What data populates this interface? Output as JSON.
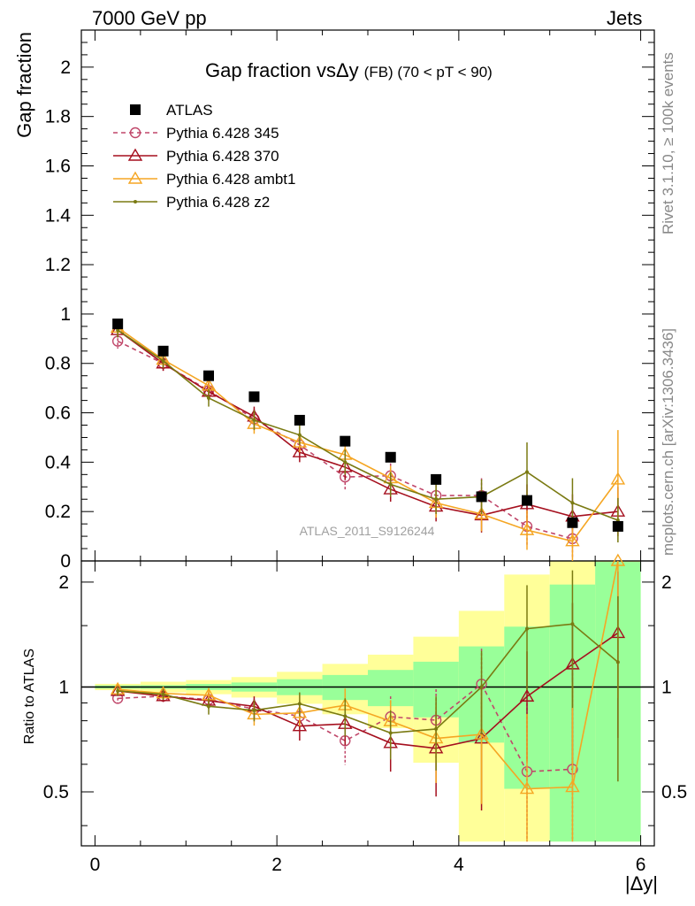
{
  "header": {
    "left": "7000 GeV pp",
    "right": "Jets"
  },
  "side_labels": {
    "rivet": "Rivet 3.1.10, ≥ 100k events",
    "mcplots": "mcplots.cern.ch [arXiv:1306.3436]"
  },
  "chart_data": {
    "type": "scatter",
    "title": "Gap fraction vsΔy (FB) (70 < pT < 90)",
    "title_parts": {
      "main": "Gap fraction vs",
      "delta": "Δy",
      "sub": "(FB) (70 < pT <  90)"
    },
    "watermark": "ATLAS_2011_S9126244",
    "xlabel": "|Δy|",
    "ylabel": "Gap fraction",
    "ratio_ylabel": "Ratio to ATLAS",
    "xlim": [
      -0.15,
      6.15
    ],
    "ylim": [
      0,
      2.15
    ],
    "ratio_ylim": [
      0.35,
      2.3
    ],
    "ratio_log": true,
    "xticks": [
      "0",
      "2",
      "4",
      "6"
    ],
    "yticks": [
      "0",
      "0.2",
      "0.4",
      "0.6",
      "0.8",
      "1",
      "1.2",
      "1.4",
      "1.6",
      "1.8",
      "2"
    ],
    "ratio_yticks": [
      "0.5",
      "1",
      "2"
    ],
    "legend_position": "top-left",
    "x": [
      0.25,
      0.75,
      1.25,
      1.75,
      2.25,
      2.75,
      3.25,
      3.75,
      4.25,
      4.75,
      5.25,
      5.75
    ],
    "bins": [
      0.0,
      0.5,
      1.0,
      1.5,
      2.0,
      2.5,
      3.0,
      3.5,
      4.0,
      4.5,
      5.0,
      5.5,
      6.0
    ],
    "data": {
      "name": "ATLAS",
      "color": "#000000",
      "values": [
        0.96,
        0.85,
        0.75,
        0.665,
        0.57,
        0.485,
        0.42,
        0.33,
        0.26,
        0.245,
        0.155,
        0.14
      ],
      "band_inner": [
        0.01,
        0.01,
        0.015,
        0.02,
        0.03,
        0.04,
        0.05,
        0.06,
        0.08,
        0.12,
        0.15,
        0.18
      ],
      "band_outer": [
        0.02,
        0.03,
        0.035,
        0.045,
        0.06,
        0.08,
        0.1,
        0.13,
        0.17,
        0.27,
        0.33,
        0.4
      ]
    },
    "series": [
      {
        "name": "Pythia 6.428 345",
        "color": "#c0476a",
        "marker": "circle",
        "dashed": true,
        "values": [
          0.89,
          0.8,
          0.69,
          0.575,
          0.47,
          0.34,
          0.345,
          0.265,
          0.265,
          0.14,
          0.09,
          null
        ],
        "errors": [
          0.03,
          0.03,
          0.035,
          0.04,
          0.04,
          0.05,
          0.05,
          0.06,
          0.07,
          0.08,
          0.08,
          null
        ]
      },
      {
        "name": "Pythia 6.428 370",
        "color": "#a50f1e",
        "marker": "triangle",
        "dashed": false,
        "values": [
          0.935,
          0.8,
          0.685,
          0.585,
          0.44,
          0.38,
          0.29,
          0.22,
          0.185,
          0.23,
          0.18,
          0.2
        ],
        "errors": [
          0.03,
          0.03,
          0.035,
          0.04,
          0.04,
          0.05,
          0.05,
          0.06,
          0.07,
          0.08,
          0.09,
          0.1
        ]
      },
      {
        "name": "Pythia 6.428 ambt1",
        "color": "#f5a623",
        "marker": "triangle",
        "dashed": false,
        "values": [
          0.945,
          0.815,
          0.71,
          0.555,
          0.48,
          0.43,
          0.335,
          0.235,
          0.19,
          0.125,
          0.08,
          0.33
        ],
        "errors": [
          0.03,
          0.03,
          0.035,
          0.04,
          0.04,
          0.05,
          0.05,
          0.06,
          0.07,
          0.08,
          0.08,
          0.2
        ]
      },
      {
        "name": "Pythia 6.428 z2",
        "color": "#7a7a12",
        "marker": "dot",
        "dashed": false,
        "values": [
          0.935,
          0.81,
          0.66,
          0.57,
          0.51,
          0.4,
          0.31,
          0.25,
          0.26,
          0.36,
          0.235,
          0.165
        ],
        "errors": [
          0.03,
          0.03,
          0.035,
          0.04,
          0.04,
          0.05,
          0.05,
          0.06,
          0.07,
          0.12,
          0.1,
          0.09
        ]
      }
    ]
  }
}
